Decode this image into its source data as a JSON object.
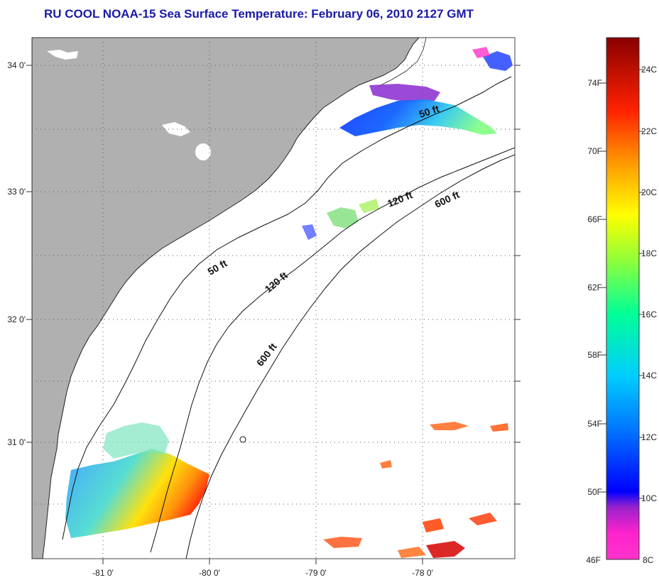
{
  "title": "RU COOL  NOAA-15  Sea Surface Temperature:  February 06, 2010 2127 GMT",
  "map": {
    "lon_range": [
      -81.7,
      -77.2
    ],
    "lat_range": [
      30.2,
      34.2
    ],
    "lon_ticks": [
      -81,
      -80,
      -79,
      -78
    ],
    "lat_ticks": [
      31,
      32,
      33,
      34
    ],
    "lon_tick_labels": [
      "-81 0'",
      "-80 0'",
      "-79 0'",
      "-78 0'"
    ],
    "lat_tick_labels": [
      "31 0'",
      "32 0'",
      "33 0'",
      "34 0'"
    ],
    "grid": "dotted",
    "land_color": "#b0b0b0",
    "contour_labels": [
      "50 ft",
      "50 ft",
      "120 ft",
      "120 ft",
      "600 ft",
      "600 ft"
    ]
  },
  "colorbar": {
    "f_labels": [
      "74F",
      "70F",
      "66F",
      "62F",
      "58F",
      "54F",
      "50F",
      "46F"
    ],
    "c_labels": [
      "24C",
      "22C",
      "20C",
      "18C",
      "16C",
      "14C",
      "12C",
      "10C",
      "8C"
    ],
    "range_c": [
      8,
      25
    ],
    "colors": [
      "#ff33cc",
      "#9922cc",
      "#0000ff",
      "#00ccff",
      "#00ff99",
      "#ffff00",
      "#ff9900",
      "#ff2200",
      "#990000"
    ]
  }
}
